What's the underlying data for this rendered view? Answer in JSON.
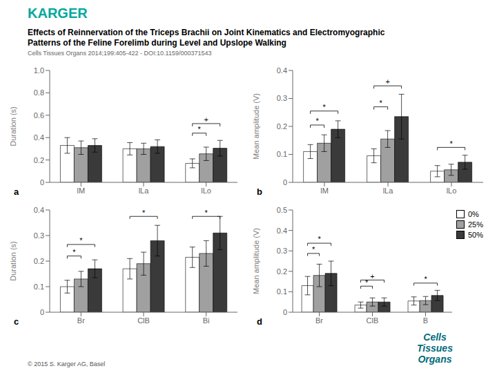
{
  "title": [
    "Effects of Reinnervation of the Triceps Brachii on Joint Kinematics and Electromyographic",
    "Patterns of the Feline Forelimb during Level and Upslope Walking"
  ],
  "subtitle": "Cells Tissues Organs 2014;199:405-422 -  DOI:10.1159/000371543",
  "annotations": [
    {
      "text": "KARGER",
      "color": "#00a89d"
    },
    {
      "text": "© 2015 S. Karger AG, Basel"
    },
    {
      "text": [
        "Cells",
        "Tissues",
        "Organs"
      ],
      "color": "#006B7A"
    }
  ],
  "chart_data": [
    {
      "type": "bar",
      "label": "a",
      "y_label": "Duration (s)",
      "grid": false,
      "ylim": [
        0,
        1
      ],
      "yticks": [
        0,
        0.2,
        0.4,
        0.6,
        0.8,
        {
          "value": 1,
          "label": "1.0"
        }
      ],
      "categories": [
        "lM",
        "lLa",
        "lLo"
      ],
      "series": [
        {
          "name": "0%",
          "color": "white",
          "values": [
            0.33,
            0.3,
            0.17
          ],
          "errors": [
            0.07,
            0.055,
            0.04
          ]
        },
        {
          "name": "25%",
          "color": "#a0a0a0",
          "values": [
            0.31,
            0.3,
            0.255
          ],
          "errors": [
            0.06,
            0.05,
            0.06
          ]
        },
        {
          "name": "50%",
          "color": "#3a3a3a",
          "values": [
            0.33,
            0.32,
            0.305
          ],
          "errors": [
            0.06,
            0.06,
            0.07
          ]
        }
      ],
      "annotations": [
        {
          "text": "*",
          "category": "lLo",
          "from": "0%",
          "to": "25%",
          "y": 0.415
        },
        {
          "text": "+",
          "category": "lLo",
          "from": "0%",
          "to": "50%",
          "y": 0.5
        }
      ]
    },
    {
      "type": "bar",
      "label": "b",
      "y_label": "Mean amplitude (V)",
      "grid": false,
      "ylim": [
        0,
        0.4
      ],
      "yticks": [
        0,
        0.1,
        0.2,
        0.3,
        0.4
      ],
      "categories": [
        "lM",
        "lLa",
        "lLo"
      ],
      "series": [
        {
          "name": "0%",
          "color": "white",
          "values": [
            0.11,
            0.095,
            0.04
          ],
          "errors": [
            0.025,
            0.025,
            0.02
          ]
        },
        {
          "name": "25%",
          "color": "#a0a0a0",
          "values": [
            0.14,
            0.155,
            0.045
          ],
          "errors": [
            0.03,
            0.03,
            0.02
          ]
        },
        {
          "name": "50%",
          "color": "#3a3a3a",
          "values": [
            0.19,
            0.235,
            0.072
          ],
          "errors": [
            0.03,
            0.08,
            0.025
          ]
        }
      ],
      "annotations": [
        {
          "text": "*",
          "category": "lM",
          "from": "0%",
          "to": "25%",
          "y": 0.195
        },
        {
          "text": "*",
          "category": "lM",
          "from": "0%",
          "to": "50%",
          "y": 0.245
        },
        {
          "text": "*",
          "category": "lLa",
          "from": "0%",
          "to": "25%",
          "y": 0.26
        },
        {
          "text": "+",
          "category": "lLa",
          "from": "0%",
          "to": "50%",
          "y": 0.335
        },
        {
          "text": "*",
          "category": "lLo",
          "from": "0%",
          "to": "50%",
          "y": 0.115
        }
      ]
    },
    {
      "type": "bar",
      "label": "c",
      "y_label": "Duration (s)",
      "grid": false,
      "ylim": [
        0,
        0.4
      ],
      "yticks": [
        0,
        0.1,
        0.2,
        0.3,
        0.4
      ],
      "categories": [
        "Br",
        "ClB",
        "Bi"
      ],
      "series": [
        {
          "name": "0%",
          "color": "white",
          "values": [
            0.1,
            0.17,
            0.215
          ],
          "errors": [
            0.025,
            0.04,
            0.04
          ]
        },
        {
          "name": "25%",
          "color": "#a0a0a0",
          "values": [
            0.13,
            0.19,
            0.23
          ],
          "errors": [
            0.03,
            0.045,
            0.05
          ]
        },
        {
          "name": "50%",
          "color": "#3a3a3a",
          "values": [
            0.17,
            0.28,
            0.31
          ],
          "errors": [
            0.035,
            0.06,
            0.065
          ]
        }
      ],
      "annotations": [
        {
          "text": "*",
          "category": "Br",
          "from": "0%",
          "to": "25%",
          "y": 0.21
        },
        {
          "text": "*",
          "category": "Br",
          "from": "0%",
          "to": "50%",
          "y": 0.255
        },
        {
          "text": "*",
          "category": "ClB",
          "from": "0%",
          "to": "50%",
          "y": 0.365
        },
        {
          "text": "*",
          "category": "Bi",
          "from": "0%",
          "to": "50%",
          "y": 0.365
        }
      ]
    },
    {
      "type": "bar",
      "label": "d",
      "y_label": "Mean amplitude (V)",
      "grid": false,
      "legend": "upper right",
      "ylim": [
        0,
        0.5
      ],
      "yticks": [
        0,
        0.1,
        0.2,
        0.3,
        0.4,
        0.5
      ],
      "categories": [
        "Br",
        "ClB",
        "B"
      ],
      "series": [
        {
          "name": "0%",
          "color": "white",
          "values": [
            0.13,
            0.035,
            0.055
          ],
          "errors": [
            0.045,
            0.015,
            0.02
          ]
        },
        {
          "name": "25%",
          "color": "#a0a0a0",
          "values": [
            0.18,
            0.05,
            0.057
          ],
          "errors": [
            0.055,
            0.02,
            0.02
          ]
        },
        {
          "name": "50%",
          "color": "#3a3a3a",
          "values": [
            0.19,
            0.05,
            0.082
          ],
          "errors": [
            0.06,
            0.02,
            0.025
          ]
        }
      ],
      "annotations": [
        {
          "text": "*",
          "category": "Br",
          "from": "0%",
          "to": "25%",
          "y": 0.275
        },
        {
          "text": "*",
          "category": "Br",
          "from": "0%",
          "to": "50%",
          "y": 0.325
        },
        {
          "text": "*",
          "category": "ClB",
          "from": "0%",
          "to": "25%",
          "y": 0.115
        },
        {
          "text": "+",
          "category": "ClB",
          "from": "0%",
          "to": "50%",
          "y": 0.145
        },
        {
          "text": "*",
          "category": "B",
          "from": "0%",
          "to": "50%",
          "y": 0.13
        }
      ]
    }
  ]
}
